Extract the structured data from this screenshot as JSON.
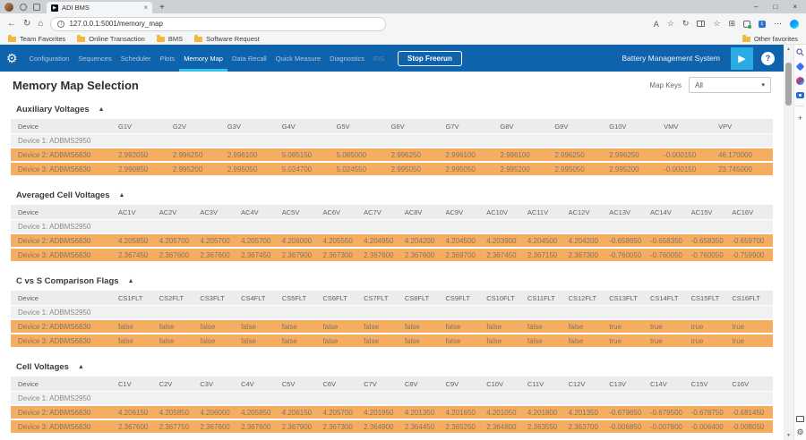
{
  "browser": {
    "tab_title": "ADI BMS",
    "url": "127.0.0.1:5001/memory_map",
    "bookmarks": [
      "Team Favorites",
      "Online Transaction",
      "BMS",
      "Software Request"
    ],
    "other_favorites": "Other favorites"
  },
  "icons": {
    "collapse": "▲",
    "play": "▶",
    "help": "?",
    "gear": "⚙",
    "back": "←",
    "refresh": "↻",
    "home": "⌂",
    "info": "i",
    "read_aloud": "A",
    "star": "☆",
    "star2": "☆",
    "collections": "⊞",
    "more": "⋯",
    "plus": "+",
    "minimize": "–",
    "maximize": "□",
    "close": "×",
    "tab_close": "×",
    "dropdown": "▾",
    "scroll_up": "▲",
    "scroll_down": "▼",
    "essentials": "c",
    "favicon_glyph": "▶"
  },
  "nav": {
    "items": [
      "Configuration",
      "Sequences",
      "Scheduler",
      "Plots",
      "Memory Map",
      "Data Recall",
      "Quick Measure",
      "Diagnostics",
      "EIS"
    ],
    "active": "Memory Map",
    "dimmed": "EIS",
    "stop_button": "Stop Freerun",
    "brand": "Battery Management System",
    "colors": {
      "bar": "#0f63ac",
      "active_underline": "#35c4ea",
      "play_button": "#2aace3"
    }
  },
  "page": {
    "title": "Memory Map Selection",
    "map_keys_label": "Map Keys",
    "map_keys_value": "All"
  },
  "colors": {
    "highlight_row": "#f5ae61",
    "plain_row": "#f1f1f1",
    "table_header": "#ececec"
  },
  "sections": [
    {
      "title": "Auxiliary Voltages",
      "columns": [
        "Device",
        "G1V",
        "G2V",
        "G3V",
        "G4V",
        "G5V",
        "G6V",
        "G7V",
        "G8V",
        "G9V",
        "G10V",
        "VMV",
        "VPV"
      ],
      "rows": [
        {
          "device": "Device 1: ADBMS2950",
          "highlight": false,
          "values": []
        },
        {
          "device": "Device 2: ADBMS6830",
          "highlight": true,
          "values": [
            "2.992050",
            "2.996250",
            "2.996100",
            "5.085150",
            "5.085000",
            "2.996250",
            "2.996100",
            "2.996100",
            "2.996250",
            "2.996250",
            "-0.000150",
            "46.170000"
          ]
        },
        {
          "device": "Device 3: ADBMS6830",
          "highlight": true,
          "values": [
            "2.990850",
            "2.995200",
            "2.995050",
            "5.024700",
            "5.024550",
            "2.995050",
            "2.995050",
            "2.995200",
            "2.995050",
            "2.995200",
            "-0.000150",
            "23.745000"
          ]
        }
      ]
    },
    {
      "title": "Averaged Cell Voltages",
      "columns": [
        "Device",
        "AC1V",
        "AC2V",
        "AC3V",
        "AC4V",
        "AC5V",
        "AC6V",
        "AC7V",
        "AC8V",
        "AC9V",
        "AC10V",
        "AC11V",
        "AC12V",
        "AC13V",
        "AC14V",
        "AC15V",
        "AC16V"
      ],
      "rows": [
        {
          "device": "Device 1: ADBMS2950",
          "highlight": false,
          "values": []
        },
        {
          "device": "Device 2: ADBMS6830",
          "highlight": true,
          "values": [
            "4.205850",
            "4.205700",
            "4.205700",
            "4.205700",
            "4.206000",
            "4.205550",
            "4.204950",
            "4.204200",
            "4.204500",
            "4.203900",
            "4.204500",
            "4.204200",
            "-0.658650",
            "-0.658350",
            "-0.658350",
            "-0.659700"
          ]
        },
        {
          "device": "Device 3: ADBMS6830",
          "highlight": true,
          "values": [
            "2.367450",
            "2.367600",
            "2.367600",
            "2.367450",
            "2.367900",
            "2.367300",
            "2.367600",
            "2.367600",
            "2.369700",
            "2.367450",
            "2.367150",
            "2.367300",
            "-0.760050",
            "-0.760050",
            "-0.760050",
            "-0.759900"
          ]
        }
      ]
    },
    {
      "title": "C vs S Comparison Flags",
      "columns": [
        "Device",
        "CS1FLT",
        "CS2FLT",
        "CS3FLT",
        "CS4FLT",
        "CS5FLT",
        "CS6FLT",
        "CS7FLT",
        "CS8FLT",
        "CS9FLT",
        "CS10FLT",
        "CS11FLT",
        "CS12FLT",
        "CS13FLT",
        "CS14FLT",
        "CS15FLT",
        "CS16FLT"
      ],
      "rows": [
        {
          "device": "Device 1: ADBMS2950",
          "highlight": false,
          "values": []
        },
        {
          "device": "Device 2: ADBMS6830",
          "highlight": true,
          "values": [
            "false",
            "false",
            "false",
            "false",
            "false",
            "false",
            "false",
            "false",
            "false",
            "false",
            "false",
            "false",
            "true",
            "true",
            "true",
            "true"
          ]
        },
        {
          "device": "Device 3: ADBMS6830",
          "highlight": true,
          "values": [
            "false",
            "false",
            "false",
            "false",
            "false",
            "false",
            "false",
            "false",
            "false",
            "false",
            "false",
            "false",
            "true",
            "true",
            "true",
            "true"
          ]
        }
      ]
    },
    {
      "title": "Cell Voltages",
      "columns": [
        "Device",
        "C1V",
        "C2V",
        "C3V",
        "C4V",
        "C5V",
        "C6V",
        "C7V",
        "C8V",
        "C9V",
        "C10V",
        "C11V",
        "C12V",
        "C13V",
        "C14V",
        "C15V",
        "C16V"
      ],
      "rows": [
        {
          "device": "Device 1: ADBMS2950",
          "highlight": false,
          "values": []
        },
        {
          "device": "Device 2: ADBMS6830",
          "highlight": true,
          "values": [
            "4.206150",
            "4.205850",
            "4.206000",
            "4.205850",
            "4.206150",
            "4.205700",
            "4.201950",
            "4.201350",
            "4.201650",
            "4.201050",
            "4.201800",
            "4.201350",
            "-0.679650",
            "-0.679500",
            "-0.678750",
            "-0.681450"
          ]
        },
        {
          "device": "Device 3: ADBMS6830",
          "highlight": true,
          "values": [
            "2.367600",
            "2.367750",
            "2.367600",
            "2.367600",
            "2.367900",
            "2.367300",
            "2.364900",
            "2.364450",
            "2.365250",
            "2.364800",
            "2.363550",
            "2.363700",
            "-0.006850",
            "-0.007800",
            "-0.006400",
            "-0.008050"
          ]
        }
      ]
    }
  ]
}
